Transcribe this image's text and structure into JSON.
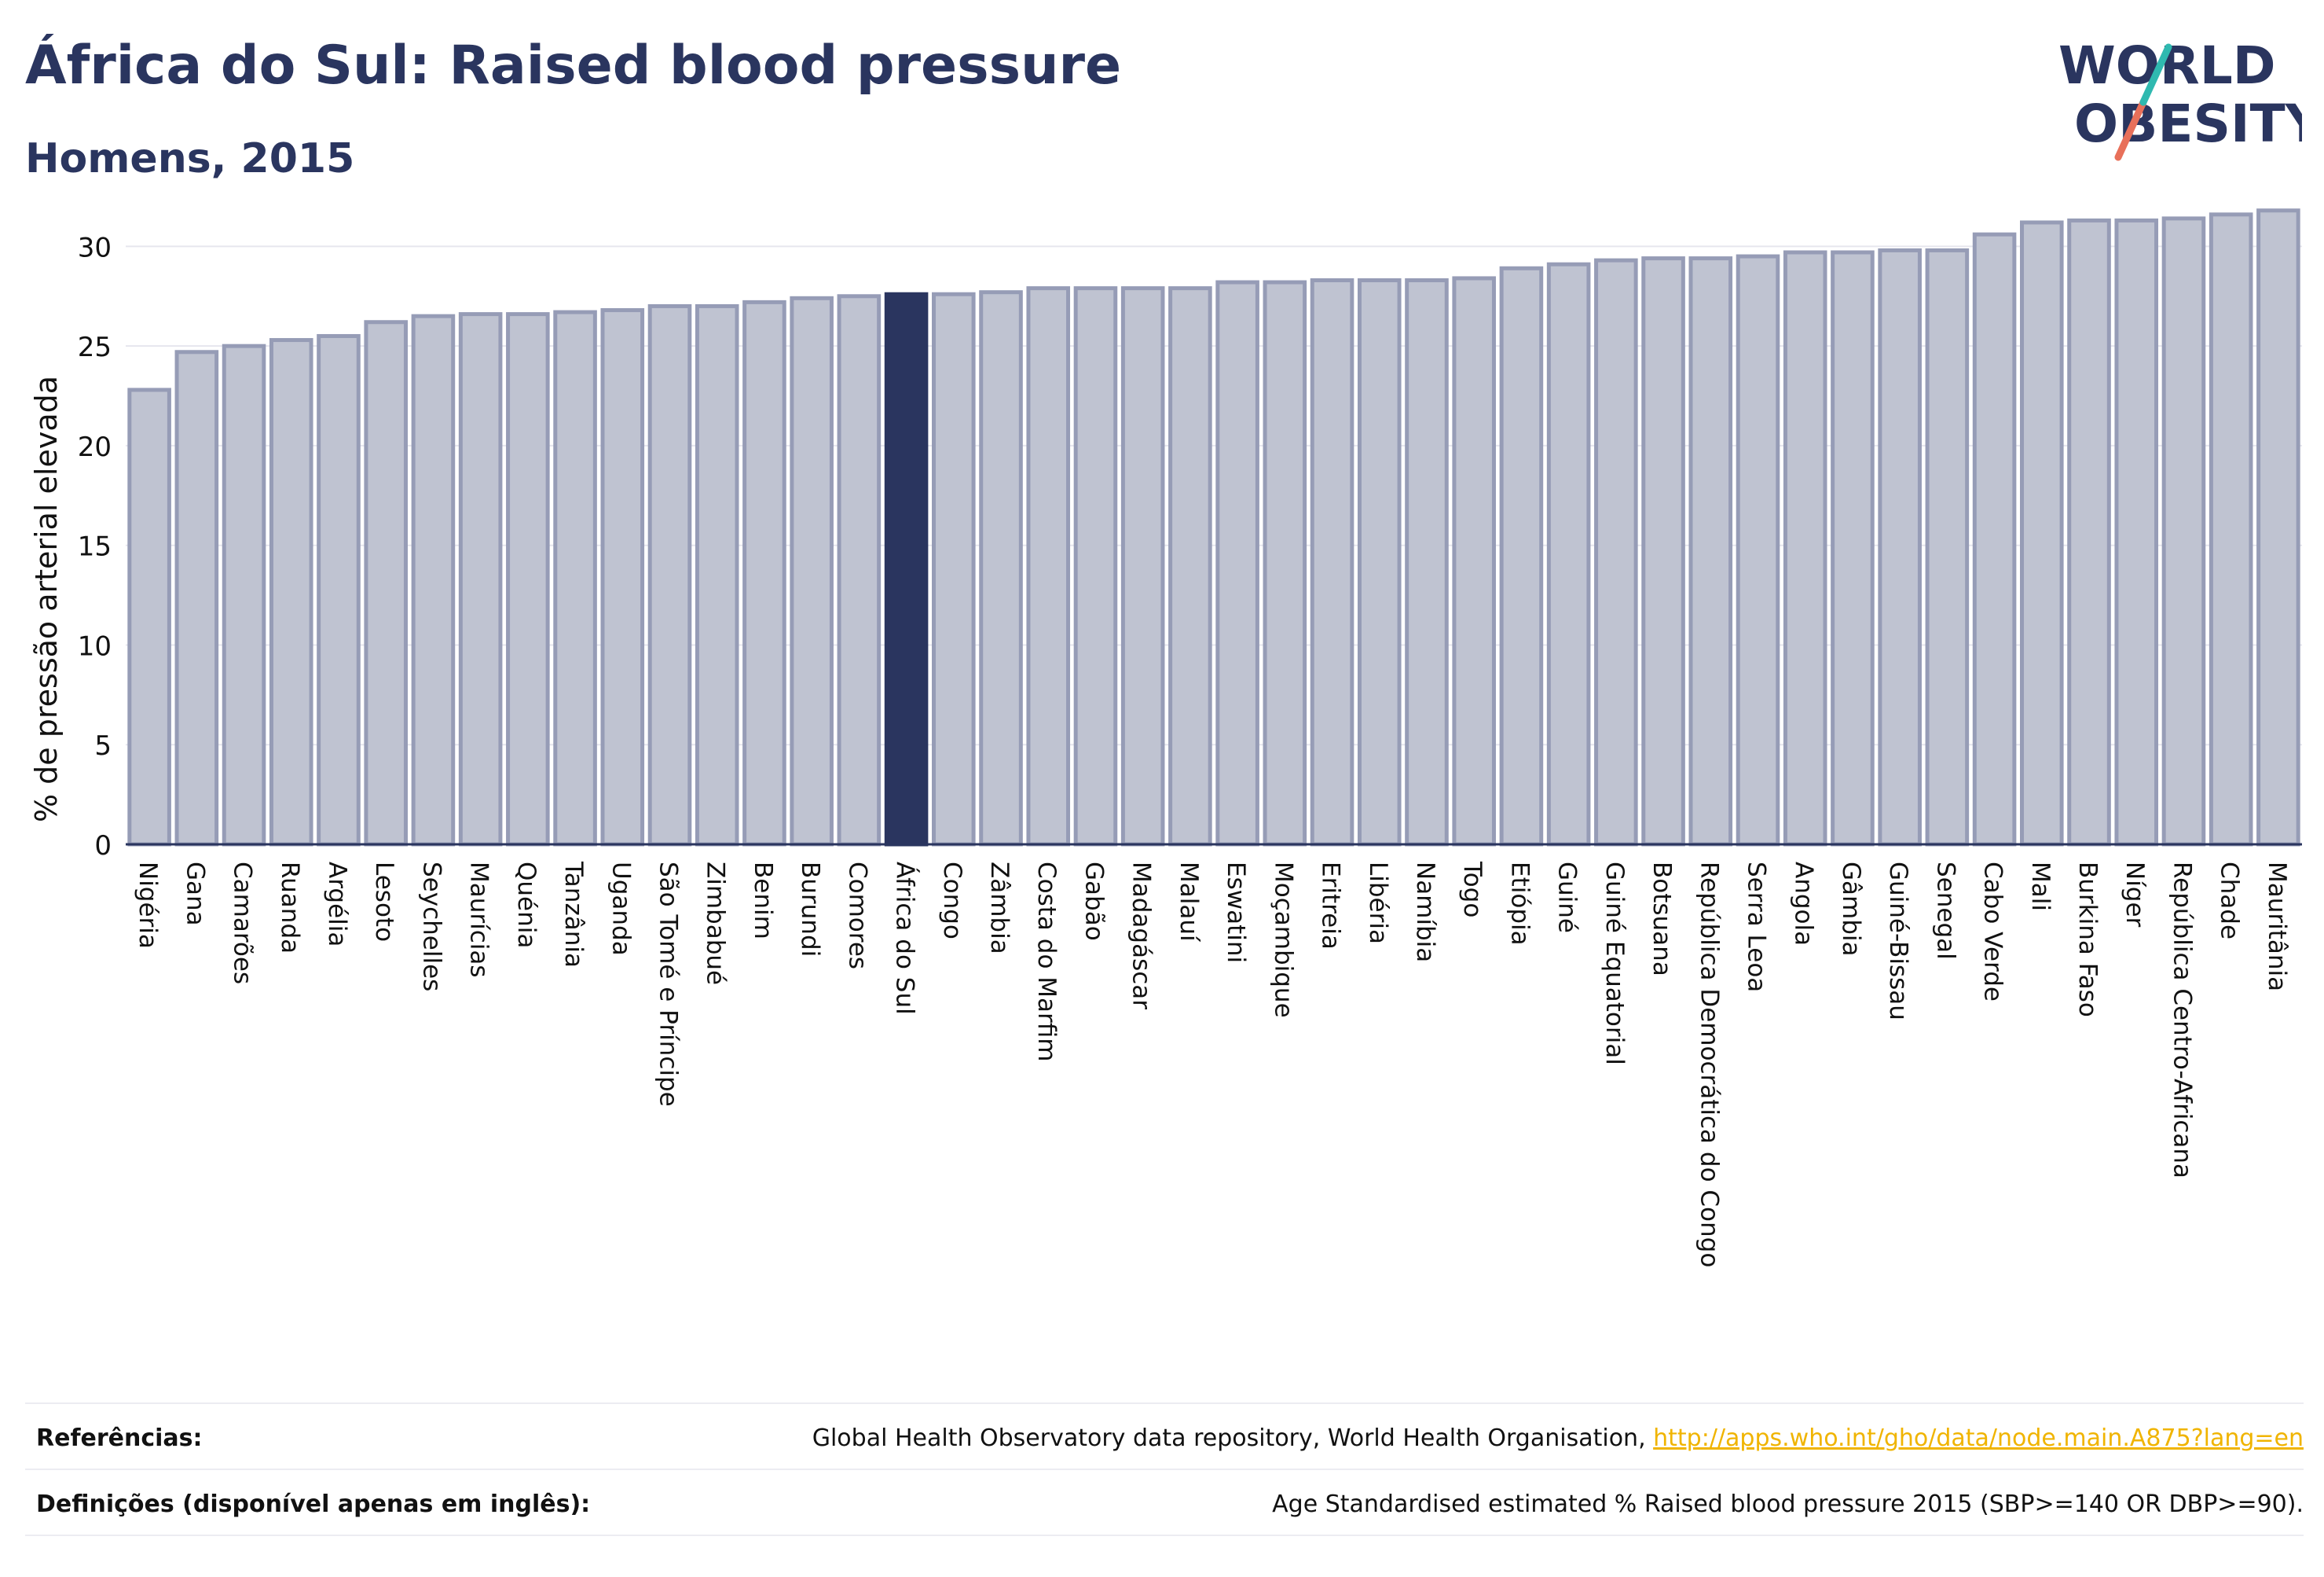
{
  "header": {
    "title": "África do Sul: Raised blood pressure",
    "subtitle": "Homens, 2015"
  },
  "logo": {
    "line1": "WORLD",
    "line2": "OBESITY"
  },
  "chart_data": {
    "type": "bar",
    "ylabel": "% de pressão arterial elevada",
    "xlabel": "",
    "ylim": [
      0,
      32.5
    ],
    "yticks": [
      0,
      5,
      10,
      15,
      20,
      25,
      30
    ],
    "grid": true,
    "highlight": "África do Sul",
    "colors": {
      "bar": "#bfc3d1",
      "bar_edge": "#969cb6",
      "highlight": "#2a355f",
      "grid": "#e6e6ee"
    },
    "categories": [
      "Nigéria",
      "Gana",
      "Camarões",
      "Ruanda",
      "Argélia",
      "Lesoto",
      "Seychelles",
      "Maurícias",
      "Quénia",
      "Tanzânia",
      "Uganda",
      "São Tomé e Príncipe",
      "Zimbabué",
      "Benim",
      "Burundi",
      "Comores",
      "África do Sul",
      "Congo",
      "Zâmbia",
      "Costa do Marfim",
      "Gabão",
      "Madagáscar",
      "Malauí",
      "Eswatini",
      "Moçambique",
      "Eritreia",
      "Libéria",
      "Namíbia",
      "Togo",
      "Etiópia",
      "Guiné",
      "Guiné Equatorial",
      "Botsuana",
      "República Democrática do Congo",
      "Serra Leoa",
      "Angola",
      "Gâmbia",
      "Guiné-Bissau",
      "Senegal",
      "Cabo Verde",
      "Mali",
      "Burkina Faso",
      "Níger",
      "República Centro-Africana",
      "Chade",
      "Mauritânia"
    ],
    "values": [
      22.8,
      24.7,
      25.0,
      25.3,
      25.5,
      26.2,
      26.5,
      26.6,
      26.6,
      26.7,
      26.8,
      27.0,
      27.0,
      27.2,
      27.4,
      27.5,
      27.6,
      27.6,
      27.7,
      27.9,
      27.9,
      27.9,
      27.9,
      28.2,
      28.2,
      28.3,
      28.3,
      28.3,
      28.4,
      28.9,
      29.1,
      29.3,
      29.4,
      29.4,
      29.5,
      29.7,
      29.7,
      29.8,
      29.8,
      30.6,
      31.2,
      31.3,
      31.3,
      31.4,
      31.6,
      31.8
    ]
  },
  "footer": {
    "references_label": "Referências:",
    "references_text": "Global Health Observatory data repository, World Health Organisation, ",
    "references_link": "http://apps.who.int/gho/data/node.main.A875?lang=en",
    "definitions_label": "Definições (disponível apenas em inglês):",
    "definitions_text": "Age Standardised estimated % Raised blood pressure 2015 (SBP>=140 OR DBP>=90)."
  }
}
